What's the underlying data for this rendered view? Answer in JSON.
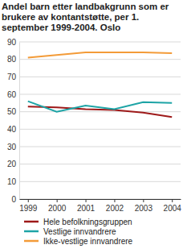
{
  "chart_data": {
    "type": "line",
    "title": "Andel barn etter landbakgrunn som er brukere av kontantstøtte, per 1. september 1999-2004. Oslo",
    "x": [
      1999,
      2000,
      2001,
      2002,
      2003,
      2004
    ],
    "series": [
      {
        "name": "Hele befolkningsgruppen",
        "color": "#9e1a1a",
        "values": [
          53,
          52.5,
          51.5,
          51,
          49.5,
          47
        ]
      },
      {
        "name": "Vestlige innvandrere",
        "color": "#1ea4a6",
        "values": [
          56,
          50,
          53.5,
          51.5,
          55.5,
          55
        ]
      },
      {
        "name": "Ikke-vestlige innvandrere",
        "color": "#f39b38",
        "values": [
          81,
          82.5,
          84,
          84,
          84,
          83.5
        ]
      }
    ],
    "xlim": [
      1998.7,
      2004.3
    ],
    "xticks": [
      1999,
      2000,
      2001,
      2002,
      2003,
      2004
    ],
    "ylim": [
      0,
      90
    ],
    "yticks": [
      0,
      10,
      20,
      30,
      40,
      50,
      60,
      70,
      80,
      90
    ],
    "grid": true,
    "legend": "bottom"
  }
}
